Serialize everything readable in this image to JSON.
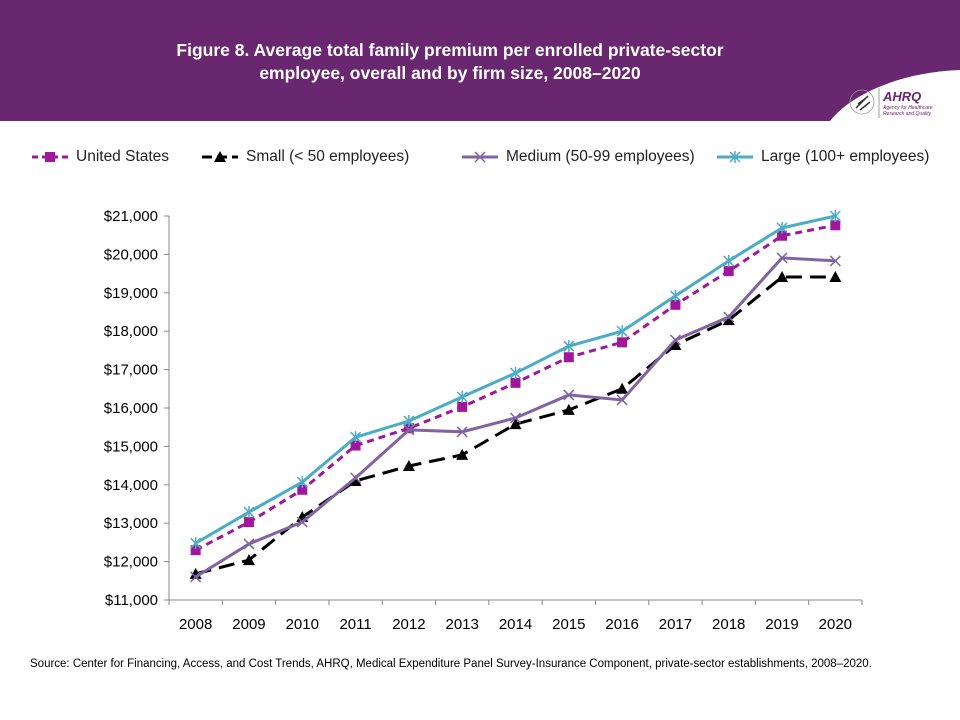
{
  "header": {
    "title_line1": "Figure 8. Average total family premium per enrolled private-sector",
    "title_line2": "employee, overall and by firm size, 2008–2020",
    "logo_text": "AHRQ",
    "logo_subtext": "Agency for Healthcare Research and Quality",
    "color": "#68276f"
  },
  "source": "Source: Center for Financing, Access, and Cost Trends, AHRQ, Medical Expenditure Panel Survey-Insurance Component, private-sector establishments, 2008–2020.",
  "chart_data": {
    "type": "line",
    "title": "Figure 8. Average total family premium per enrolled private-sector employee, overall and by firm size, 2008–2020",
    "categories": [
      "2008",
      "2009",
      "2010",
      "2011",
      "2012",
      "2013",
      "2014",
      "2015",
      "2016",
      "2017",
      "2018",
      "2019",
      "2020"
    ],
    "ylim": [
      11000,
      21000
    ],
    "yticks": [
      11000,
      12000,
      13000,
      14000,
      15000,
      16000,
      17000,
      18000,
      19000,
      20000,
      21000
    ],
    "ytick_labels": [
      "$11,000",
      "$12,000",
      "$13,000",
      "$14,000",
      "$15,000",
      "$16,000",
      "$17,000",
      "$18,000",
      "$19,000",
      "$20,000",
      "$21,000"
    ],
    "grid": false,
    "legend_placement": "top",
    "series": [
      {
        "name": "United States",
        "color": "#a0179d",
        "marker": "square",
        "dash": "short-dash",
        "values": [
          12298,
          13027,
          13871,
          15022,
          15473,
          16029,
          16655,
          17322,
          17710,
          18687,
          19565,
          20486,
          20758
        ]
      },
      {
        "name": "Small (< 50 employees)",
        "color": "#000000",
        "marker": "triangle",
        "dash": "long-dash",
        "values": [
          11680,
          12040,
          13160,
          14100,
          14490,
          14780,
          15580,
          15950,
          16500,
          17640,
          18290,
          19410,
          19410
        ]
      },
      {
        "name": "Medium (50-99 employees)",
        "color": "#8064a2",
        "marker": "x",
        "dash": "solid",
        "values": [
          11600,
          12460,
          13030,
          14180,
          15430,
          15380,
          15740,
          16340,
          16210,
          17770,
          18370,
          19910,
          19830
        ]
      },
      {
        "name": "Large (100+ employees)",
        "color": "#4bacc6",
        "marker": "asterisk",
        "dash": "solid",
        "values": [
          12480,
          13290,
          14070,
          15240,
          15660,
          16290,
          16910,
          17610,
          18000,
          18920,
          19830,
          20690,
          21000
        ]
      }
    ]
  }
}
